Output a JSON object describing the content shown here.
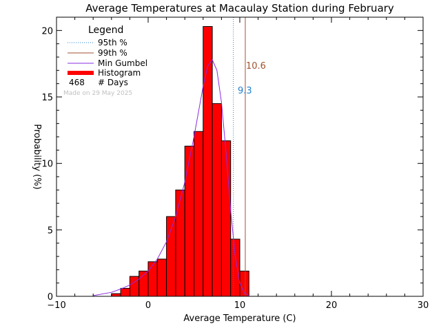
{
  "chart_data": {
    "type": "bar",
    "title": "Average Temperatures at Macaulay Station during February",
    "xlabel": "Average Temperature (C)",
    "ylabel": "Probability (%)",
    "xlim": [
      -10,
      30
    ],
    "ylim": [
      0,
      21
    ],
    "x_ticks": [
      -10,
      0,
      10,
      20,
      30
    ],
    "y_ticks": [
      0,
      5,
      10,
      15,
      20
    ],
    "x_tick_labels": [
      "−10",
      "0",
      "10",
      "20",
      "30"
    ],
    "y_tick_labels": [
      "0",
      "5",
      "10",
      "15",
      "20"
    ],
    "bin_width": 1,
    "bin_starts": [
      -4,
      -3,
      -2,
      -1,
      0,
      1,
      2,
      3,
      4,
      5,
      6,
      7,
      8,
      9,
      10
    ],
    "values": [
      0.2,
      0.6,
      1.5,
      1.9,
      2.6,
      2.8,
      6.0,
      8.0,
      11.3,
      12.4,
      20.3,
      14.5,
      11.7,
      4.3,
      1.9
    ],
    "p95": 9.3,
    "p99": 10.6,
    "p95_label": "9.3",
    "p99_label": "10.6",
    "gumbel_curve": {
      "x": [
        -6,
        -4,
        -3,
        -2,
        -1,
        0,
        1,
        2,
        3,
        4,
        5,
        6,
        6.5,
        7,
        7.5,
        8,
        8.5,
        9,
        9.5,
        10,
        10.5,
        11
      ],
      "y": [
        0.05,
        0.3,
        0.55,
        0.85,
        1.3,
        1.9,
        2.8,
        4.1,
        6.0,
        8.6,
        12.0,
        15.8,
        17.3,
        17.8,
        17.0,
        14.6,
        10.8,
        6.5,
        3.0,
        1.0,
        0.25,
        0.05
      ]
    },
    "legend": {
      "title": "Legend",
      "placement": "top-left",
      "items": [
        {
          "label": "95th %",
          "style": "dotted",
          "color": "#1f7fd0"
        },
        {
          "label": "99th %",
          "style": "solid",
          "color": "#a0522d"
        },
        {
          "label": "Min Gumbel",
          "style": "solid",
          "color": "#8a2be2"
        },
        {
          "label": "Histogram",
          "style": "thick",
          "color": "#ff0000"
        }
      ],
      "days_count": "468",
      "days_label": "# Days"
    },
    "made_on": "Made on 29 May 2025",
    "colors": {
      "histogram": "#ff0000",
      "p95": "#1f7fd0",
      "p99": "#a0522d",
      "gumbel": "#8a2be2"
    }
  }
}
